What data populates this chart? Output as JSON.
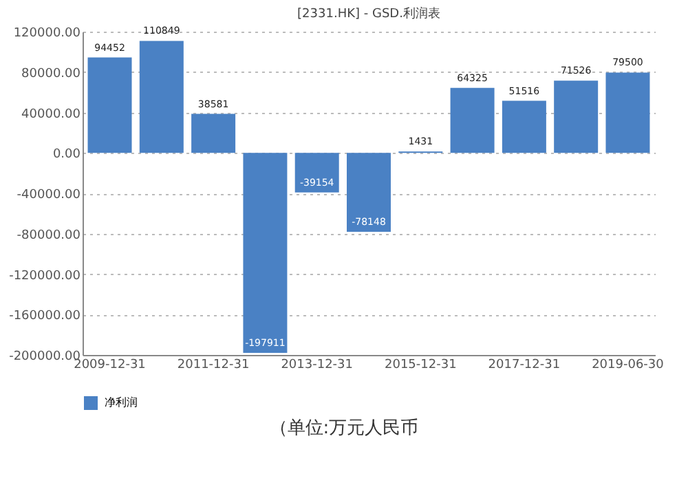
{
  "chart_data": {
    "type": "bar",
    "title": "[2331.HK] - GSD.利润表",
    "categories": [
      "2009-12-31",
      null,
      "2011-12-31",
      null,
      "2013-12-31",
      null,
      "2015-12-31",
      null,
      "2017-12-31",
      null,
      "2019-06-30"
    ],
    "series": [
      {
        "name": "净利润",
        "color": "#4a81c4",
        "values": [
          94452,
          110849,
          38581,
          -197911,
          -39154,
          -78148,
          1431,
          64325,
          51516,
          71526,
          79500
        ]
      }
    ],
    "ylim": [
      -200000,
      120000
    ],
    "yticks": [
      {
        "value": -200000,
        "label": "-200000.00"
      },
      {
        "value": -160000,
        "label": "-160000.00"
      },
      {
        "value": -120000,
        "label": "-120000.00"
      },
      {
        "value": -80000,
        "label": "-80000.00"
      },
      {
        "value": -40000,
        "label": "-40000.00"
      },
      {
        "value": 0,
        "label": "0.00"
      },
      {
        "value": 40000,
        "label": "40000.00"
      },
      {
        "value": 80000,
        "label": "80000.00"
      },
      {
        "value": 120000,
        "label": "120000.00"
      }
    ],
    "grid": "y",
    "legend": "bottom",
    "data_labels": true,
    "annotations": [
      "（单位:万元人民币"
    ]
  }
}
